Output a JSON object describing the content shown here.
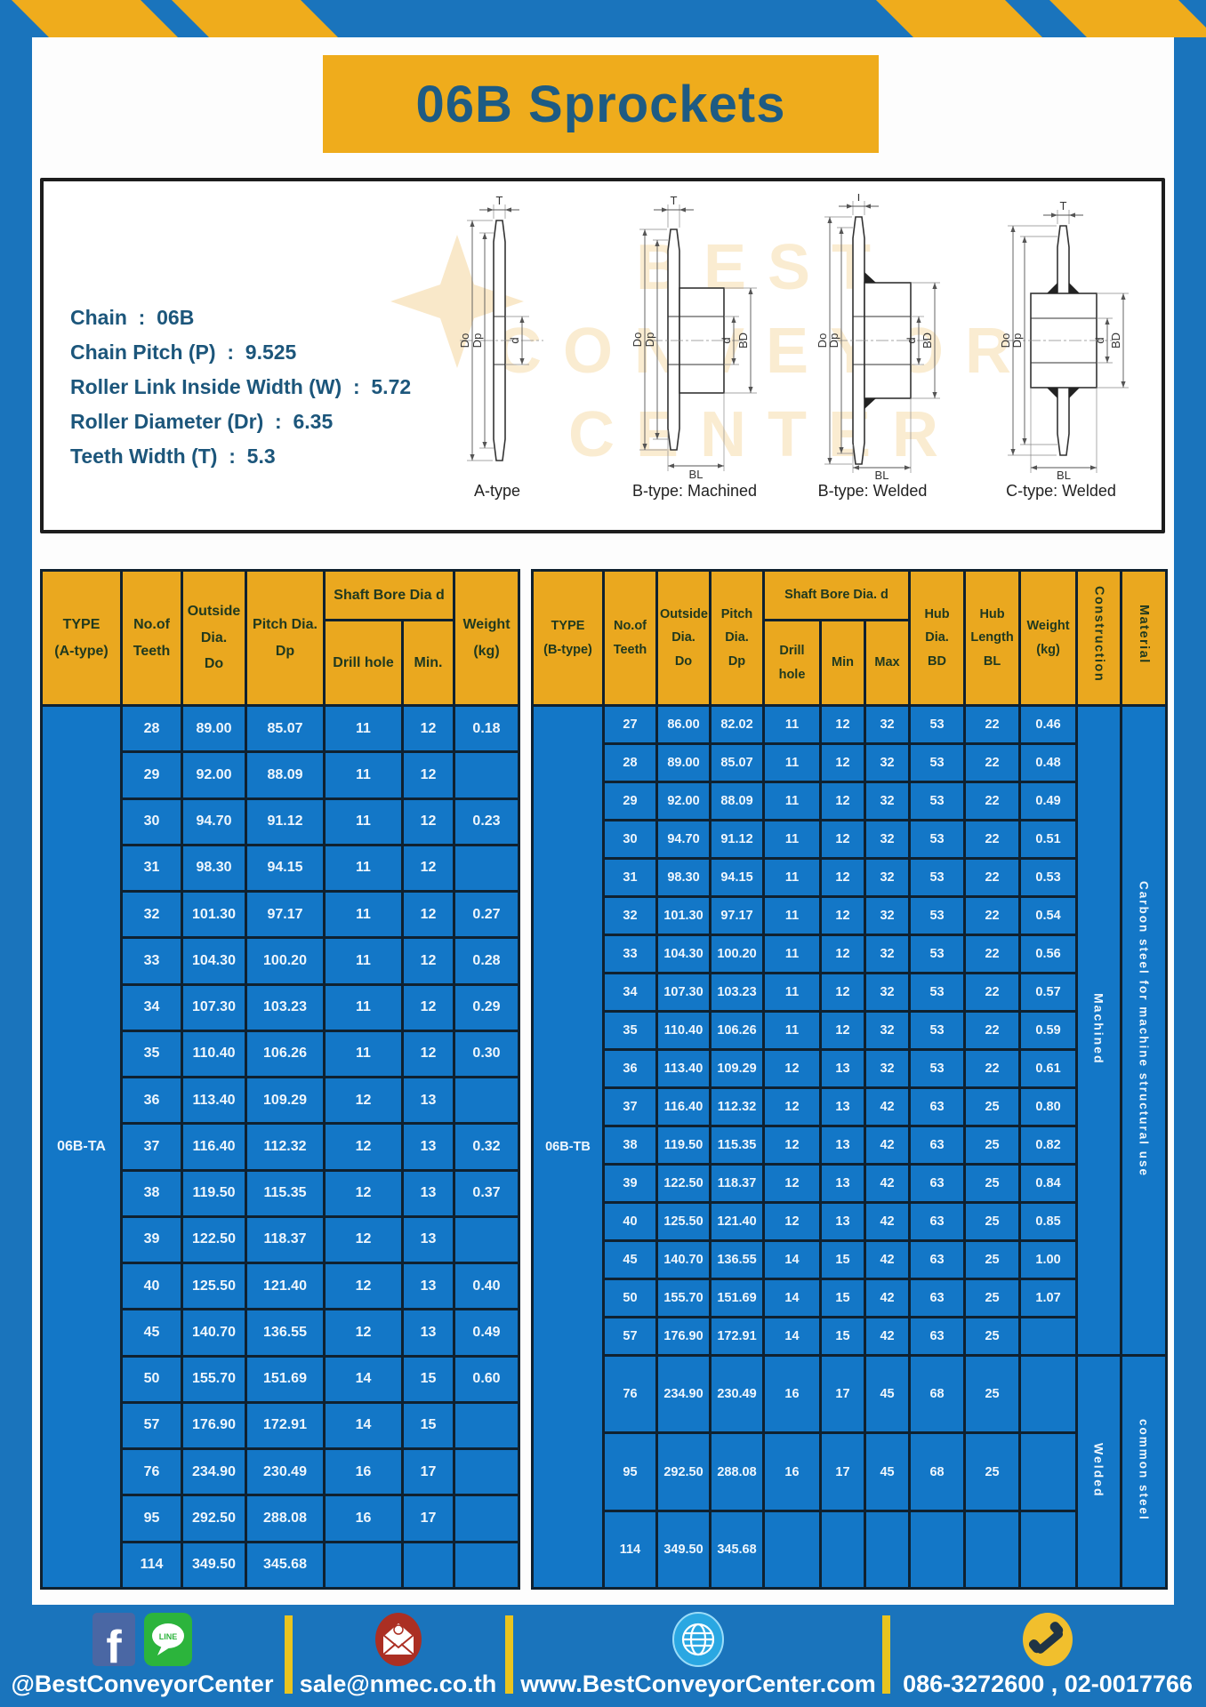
{
  "title": "06B Sprockets",
  "specs": [
    {
      "label": "Chain",
      "value": "06B"
    },
    {
      "label": "Chain Pitch (P)",
      "value": "9.525"
    },
    {
      "label": "Roller Link Inside Width (W)",
      "value": "5.72"
    },
    {
      "label": "Roller Diameter (Dr)",
      "value": "6.35"
    },
    {
      "label": "Teeth Width (T)",
      "value": "5.3"
    }
  ],
  "drawings": {
    "captions": [
      "A-type",
      "B-type: Machined",
      "B-type: Welded",
      "C-type: Welded"
    ],
    "dims": {
      "t": "T",
      "do": "Do",
      "dp": "Dp",
      "d": "d",
      "bd": "BD",
      "bl": "BL"
    },
    "watermark": "BEST\nCONVEYOR\nCENTER"
  },
  "table_a": {
    "type_label": "06B-TA",
    "header": {
      "type": "TYPE\n(A-type)",
      "teeth": "No.of\nTeeth",
      "outside": "Outside\nDia.\nDo",
      "pitch": "Pitch Dia.\nDp",
      "shaft_group": "Shaft Bore Dia d",
      "drill": "Drill hole",
      "min": "Min.",
      "weight": "Weight\n(kg)"
    },
    "rows": [
      [
        "28",
        "89.00",
        "85.07",
        "11",
        "12",
        "0.18"
      ],
      [
        "29",
        "92.00",
        "88.09",
        "11",
        "12",
        ""
      ],
      [
        "30",
        "94.70",
        "91.12",
        "11",
        "12",
        "0.23"
      ],
      [
        "31",
        "98.30",
        "94.15",
        "11",
        "12",
        ""
      ],
      [
        "32",
        "101.30",
        "97.17",
        "11",
        "12",
        "0.27"
      ],
      [
        "33",
        "104.30",
        "100.20",
        "11",
        "12",
        "0.28"
      ],
      [
        "34",
        "107.30",
        "103.23",
        "11",
        "12",
        "0.29"
      ],
      [
        "35",
        "110.40",
        "106.26",
        "11",
        "12",
        "0.30"
      ],
      [
        "36",
        "113.40",
        "109.29",
        "12",
        "13",
        ""
      ],
      [
        "37",
        "116.40",
        "112.32",
        "12",
        "13",
        "0.32"
      ],
      [
        "38",
        "119.50",
        "115.35",
        "12",
        "13",
        "0.37"
      ],
      [
        "39",
        "122.50",
        "118.37",
        "12",
        "13",
        ""
      ],
      [
        "40",
        "125.50",
        "121.40",
        "12",
        "13",
        "0.40"
      ],
      [
        "45",
        "140.70",
        "136.55",
        "12",
        "13",
        "0.49"
      ],
      [
        "50",
        "155.70",
        "151.69",
        "14",
        "15",
        "0.60"
      ],
      [
        "57",
        "176.90",
        "172.91",
        "14",
        "15",
        ""
      ],
      [
        "76",
        "234.90",
        "230.49",
        "16",
        "17",
        ""
      ],
      [
        "95",
        "292.50",
        "288.08",
        "16",
        "17",
        ""
      ],
      [
        "114",
        "349.50",
        "345.68",
        "",
        "",
        ""
      ]
    ]
  },
  "table_b": {
    "type_label": "06B-TB",
    "header": {
      "type": "TYPE\n(B-type)",
      "teeth": "No.of\nTeeth",
      "outside": "Outside\nDia.\nDo",
      "pitch": "Pitch\nDia.\nDp",
      "shaft_group": "Shaft Bore Dia. d",
      "drill": "Drill hole",
      "min": "Min",
      "max": "Max",
      "hub_dia": "Hub\nDia.\nBD",
      "hub_len": "Hub\nLength\nBL",
      "weight": "Weight\n(kg)",
      "construction": "Construction",
      "material": "Material"
    },
    "rows": [
      [
        "27",
        "86.00",
        "82.02",
        "11",
        "12",
        "32",
        "53",
        "22",
        "0.46"
      ],
      [
        "28",
        "89.00",
        "85.07",
        "11",
        "12",
        "32",
        "53",
        "22",
        "0.48"
      ],
      [
        "29",
        "92.00",
        "88.09",
        "11",
        "12",
        "32",
        "53",
        "22",
        "0.49"
      ],
      [
        "30",
        "94.70",
        "91.12",
        "11",
        "12",
        "32",
        "53",
        "22",
        "0.51"
      ],
      [
        "31",
        "98.30",
        "94.15",
        "11",
        "12",
        "32",
        "53",
        "22",
        "0.53"
      ],
      [
        "32",
        "101.30",
        "97.17",
        "11",
        "12",
        "32",
        "53",
        "22",
        "0.54"
      ],
      [
        "33",
        "104.30",
        "100.20",
        "11",
        "12",
        "32",
        "53",
        "22",
        "0.56"
      ],
      [
        "34",
        "107.30",
        "103.23",
        "11",
        "12",
        "32",
        "53",
        "22",
        "0.57"
      ],
      [
        "35",
        "110.40",
        "106.26",
        "11",
        "12",
        "32",
        "53",
        "22",
        "0.59"
      ],
      [
        "36",
        "113.40",
        "109.29",
        "12",
        "13",
        "32",
        "53",
        "22",
        "0.61"
      ],
      [
        "37",
        "116.40",
        "112.32",
        "12",
        "13",
        "42",
        "63",
        "25",
        "0.80"
      ],
      [
        "38",
        "119.50",
        "115.35",
        "12",
        "13",
        "42",
        "63",
        "25",
        "0.82"
      ],
      [
        "39",
        "122.50",
        "118.37",
        "12",
        "13",
        "42",
        "63",
        "25",
        "0.84"
      ],
      [
        "40",
        "125.50",
        "121.40",
        "12",
        "13",
        "42",
        "63",
        "25",
        "0.85"
      ],
      [
        "45",
        "140.70",
        "136.55",
        "14",
        "15",
        "42",
        "63",
        "25",
        "1.00"
      ],
      [
        "50",
        "155.70",
        "151.69",
        "14",
        "15",
        "42",
        "63",
        "25",
        "1.07"
      ],
      [
        "57",
        "176.90",
        "172.91",
        "14",
        "15",
        "42",
        "63",
        "25",
        ""
      ],
      [
        "76",
        "234.90",
        "230.49",
        "16",
        "17",
        "45",
        "68",
        "25",
        ""
      ],
      [
        "95",
        "292.50",
        "288.08",
        "16",
        "17",
        "45",
        "68",
        "25",
        ""
      ],
      [
        "114",
        "349.50",
        "345.68",
        "",
        "",
        "",
        "",
        "",
        ""
      ]
    ],
    "construction_groups": [
      {
        "label": "Machined",
        "rows": 17
      },
      {
        "label": "Welded",
        "rows": 3
      }
    ],
    "material_groups": [
      {
        "label": "Carbon steel for machine structural use",
        "rows": 17
      },
      {
        "label": "common steel",
        "rows": 3
      }
    ]
  },
  "footer": {
    "social_handle": "@BestConveyorCenter",
    "email": "sale@nmec.co.th",
    "website": "www.BestConveyorCenter.com",
    "phones": "086-3272600 , 02-0017766",
    "facebook_letter": "f",
    "line_logo_text": "LINE"
  },
  "colors": {
    "brand_blue": "#1a74bc",
    "cell_blue": "#1377c7",
    "brand_yellow": "#efac1c",
    "header_yellow": "#eaa81f",
    "title_navy": "#1e5b83",
    "divider_yellow": "#e9c41f"
  }
}
